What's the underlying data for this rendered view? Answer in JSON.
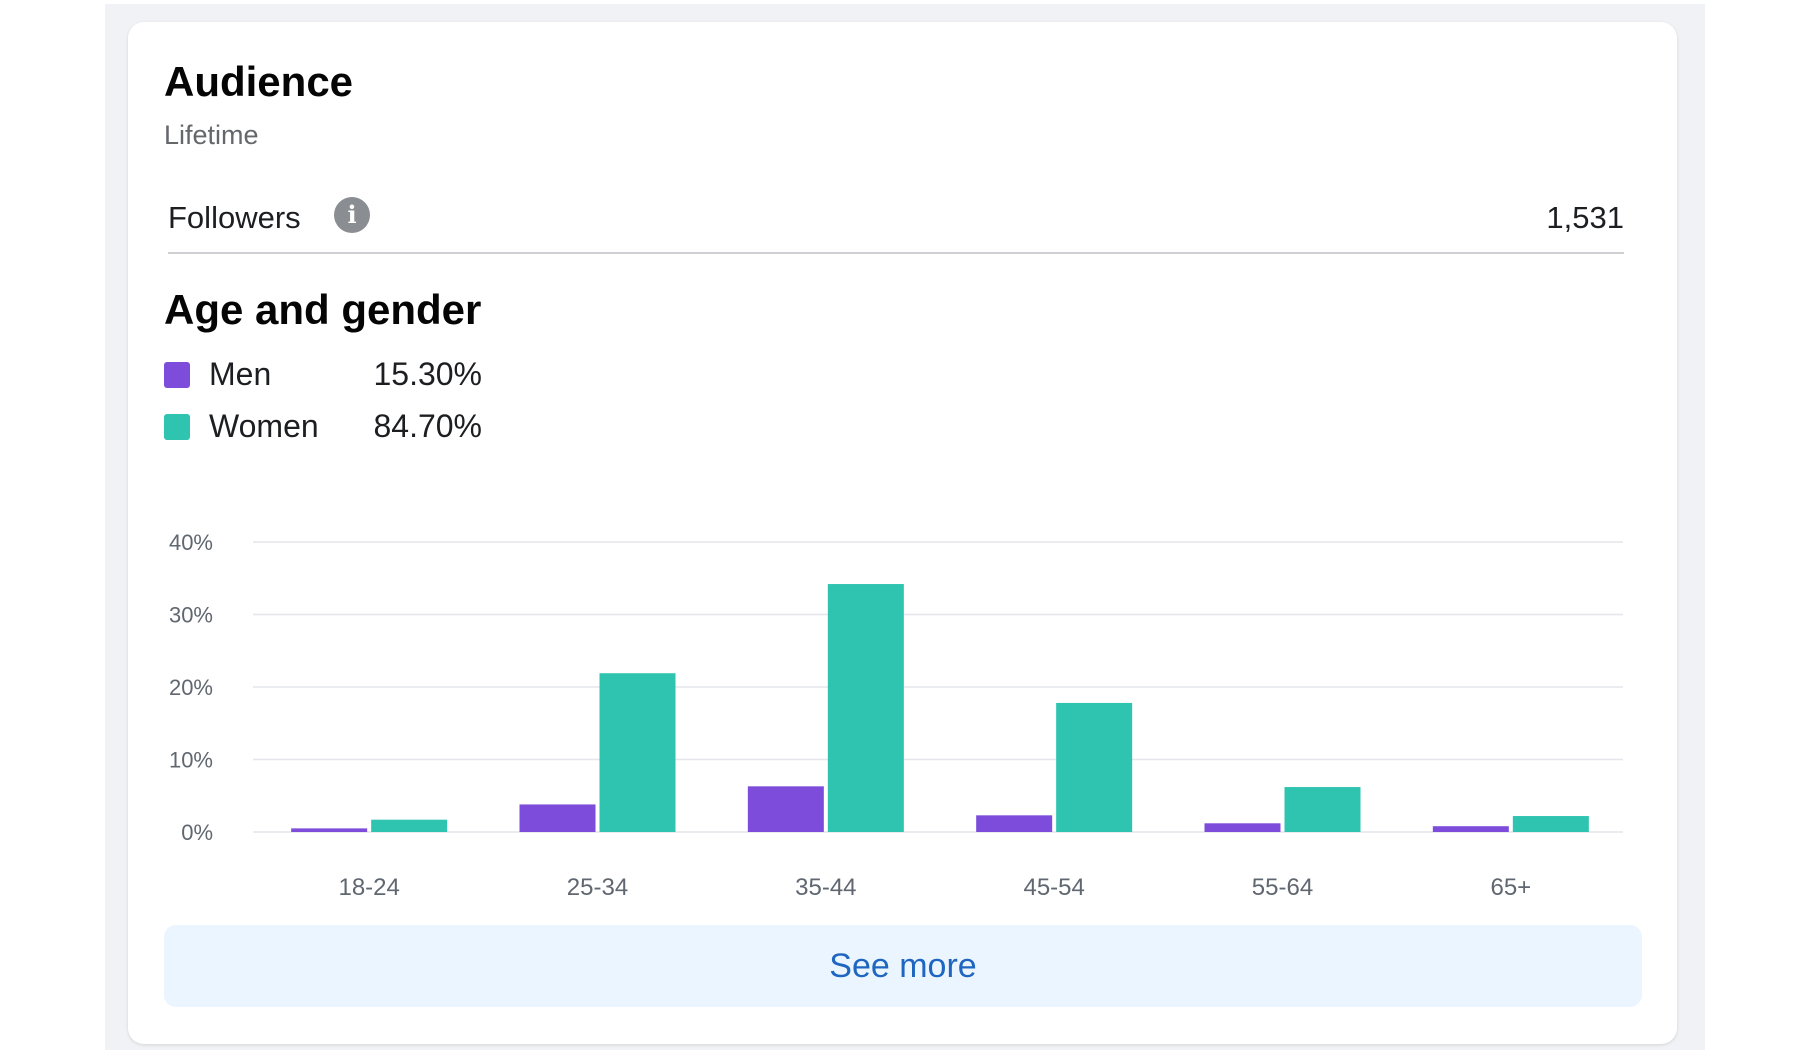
{
  "card": {
    "title": "Audience",
    "subtitle": "Lifetime"
  },
  "followers": {
    "label": "Followers",
    "value": "1,531",
    "info_icon": "info-icon"
  },
  "age_gender": {
    "title": "Age and gender",
    "legend": [
      {
        "label": "Men",
        "value": "15.30%",
        "color": "#7d4cdb"
      },
      {
        "label": "Women",
        "value": "84.70%",
        "color": "#2ec4b0"
      }
    ]
  },
  "chart_data": {
    "type": "bar",
    "title": "",
    "xlabel": "",
    "ylabel": "",
    "categories": [
      "18-24",
      "25-34",
      "35-44",
      "45-54",
      "55-64",
      "65+"
    ],
    "series": [
      {
        "name": "Men",
        "color": "#7d4cdb",
        "values": [
          0.5,
          3.8,
          6.3,
          2.3,
          1.2,
          0.8
        ]
      },
      {
        "name": "Women",
        "color": "#2ec4b0",
        "values": [
          1.7,
          21.9,
          34.2,
          17.8,
          6.2,
          2.2
        ]
      }
    ],
    "y_ticks": [
      "0%",
      "10%",
      "20%",
      "30%",
      "40%"
    ],
    "ylim": [
      0,
      40
    ],
    "grid": true
  },
  "actions": {
    "see_more_label": "See more"
  }
}
